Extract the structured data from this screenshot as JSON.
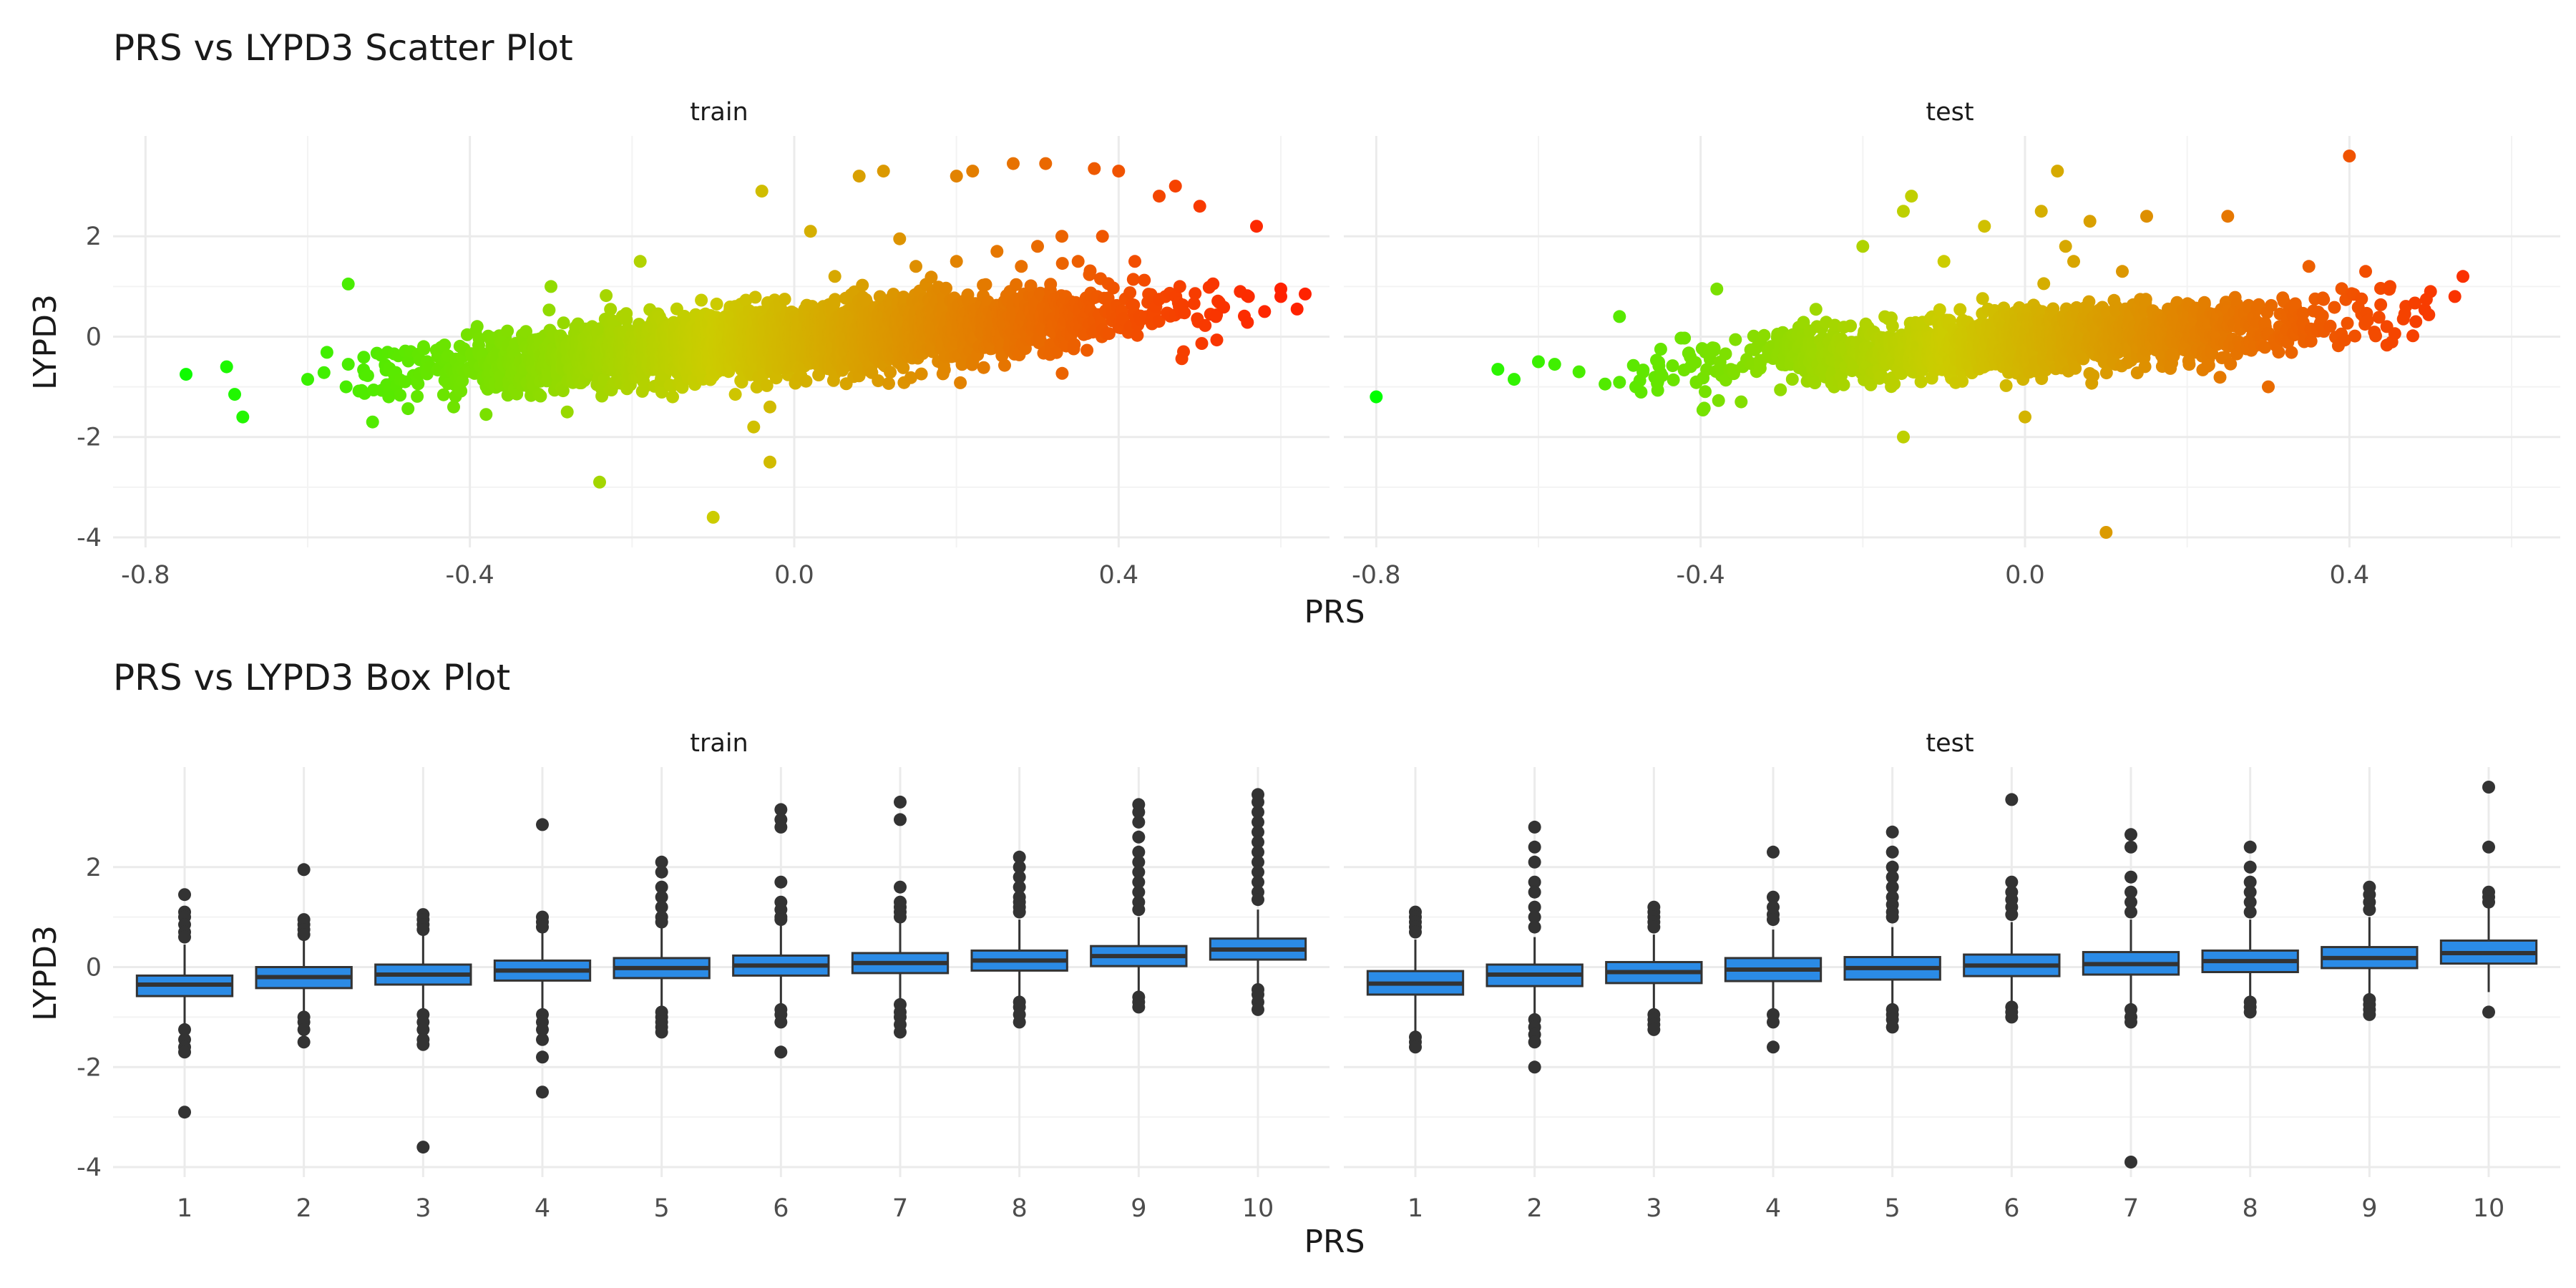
{
  "chart_data": [
    {
      "type": "scatter",
      "title": "PRS vs LYPD3 Scatter Plot",
      "xlabel": "PRS",
      "ylabel": "LYPD3",
      "facets": [
        "train",
        "test"
      ],
      "xlim": [
        -0.84,
        0.66
      ],
      "ylim": [
        -4.2,
        4.0
      ],
      "x_ticks": [
        -0.8,
        -0.4,
        0.0,
        0.4
      ],
      "x_tick_labels": [
        "-0.8",
        "-0.4",
        "0.0",
        "0.4"
      ],
      "y_ticks": [
        -4,
        -2,
        0,
        2
      ],
      "y_tick_labels": [
        "-4",
        "-2",
        "0",
        "2"
      ],
      "color_scale": {
        "low": "#00ff00",
        "mid": "#cccc00",
        "high": "#ff2200",
        "domain": [
          -0.8,
          0.6
        ]
      },
      "grid": true,
      "legend": "none",
      "panels": {
        "train": {
          "cloud": {
            "slope": 1.25,
            "intercept": -0.05,
            "spread": 0.32,
            "x_mean": 0.0,
            "x_sd": 0.2,
            "x_range": [
              -0.58,
              0.56
            ],
            "n": 3500
          },
          "points": [
            [
              -0.75,
              -0.75
            ],
            [
              -0.7,
              -0.6
            ],
            [
              -0.69,
              -1.15
            ],
            [
              -0.68,
              -1.6
            ],
            [
              -0.6,
              -0.85
            ],
            [
              -0.55,
              -0.55
            ],
            [
              -0.55,
              1.05
            ],
            [
              -0.52,
              -1.7
            ],
            [
              -0.5,
              -1.2
            ],
            [
              -0.48,
              -0.9
            ],
            [
              -0.42,
              -1.4
            ],
            [
              -0.38,
              -1.55
            ],
            [
              -0.3,
              1.0
            ],
            [
              -0.28,
              -1.5
            ],
            [
              -0.24,
              -2.9
            ],
            [
              -0.19,
              1.5
            ],
            [
              -0.15,
              -1.2
            ],
            [
              -0.1,
              -3.6
            ],
            [
              -0.05,
              -1.8
            ],
            [
              -0.04,
              2.9
            ],
            [
              -0.03,
              -1.4
            ],
            [
              -0.03,
              -2.5
            ],
            [
              0.02,
              2.1
            ],
            [
              0.05,
              1.2
            ],
            [
              0.08,
              3.2
            ],
            [
              0.11,
              3.3
            ],
            [
              0.13,
              1.95
            ],
            [
              0.15,
              1.4
            ],
            [
              0.2,
              1.5
            ],
            [
              0.2,
              3.2
            ],
            [
              0.22,
              3.3
            ],
            [
              0.25,
              1.7
            ],
            [
              0.27,
              3.45
            ],
            [
              0.28,
              1.4
            ],
            [
              0.3,
              1.8
            ],
            [
              0.31,
              3.45
            ],
            [
              0.33,
              2.0
            ],
            [
              0.35,
              1.5
            ],
            [
              0.37,
              3.35
            ],
            [
              0.38,
              2.0
            ],
            [
              0.4,
              3.3
            ],
            [
              0.42,
              1.5
            ],
            [
              0.45,
              2.8
            ],
            [
              0.47,
              3.0
            ],
            [
              0.48,
              -0.3
            ],
            [
              0.5,
              2.6
            ],
            [
              0.52,
              0.4
            ],
            [
              0.55,
              0.9
            ],
            [
              0.56,
              0.8
            ],
            [
              0.57,
              2.2
            ],
            [
              0.58,
              0.5
            ],
            [
              0.6,
              0.8
            ],
            [
              0.62,
              0.55
            ],
            [
              0.63,
              0.85
            ],
            [
              0.6,
              0.95
            ]
          ]
        },
        "test": {
          "cloud": {
            "slope": 1.1,
            "intercept": -0.1,
            "spread": 0.3,
            "x_mean": 0.0,
            "x_sd": 0.2,
            "x_range": [
              -0.52,
              0.5
            ],
            "n": 1600
          },
          "points": [
            [
              -0.8,
              -1.2
            ],
            [
              -0.65,
              -0.65
            ],
            [
              -0.63,
              -0.85
            ],
            [
              -0.6,
              -0.5
            ],
            [
              -0.58,
              -0.55
            ],
            [
              -0.55,
              -0.7
            ],
            [
              -0.5,
              0.4
            ],
            [
              -0.48,
              -1.0
            ],
            [
              -0.38,
              0.95
            ],
            [
              -0.35,
              -1.3
            ],
            [
              -0.2,
              1.8
            ],
            [
              -0.15,
              -2.0
            ],
            [
              -0.15,
              2.5
            ],
            [
              -0.14,
              2.8
            ],
            [
              -0.1,
              1.5
            ],
            [
              -0.05,
              2.2
            ],
            [
              0.0,
              -1.6
            ],
            [
              0.02,
              2.5
            ],
            [
              0.04,
              3.3
            ],
            [
              0.05,
              1.8
            ],
            [
              0.06,
              1.5
            ],
            [
              0.08,
              2.3
            ],
            [
              0.1,
              -3.9
            ],
            [
              0.12,
              1.3
            ],
            [
              0.15,
              2.4
            ],
            [
              0.25,
              2.4
            ],
            [
              0.3,
              -1.0
            ],
            [
              0.35,
              1.4
            ],
            [
              0.4,
              3.6
            ],
            [
              0.42,
              1.3
            ],
            [
              0.45,
              1.0
            ],
            [
              0.5,
              0.9
            ],
            [
              0.53,
              0.8
            ],
            [
              0.54,
              1.2
            ]
          ]
        }
      }
    },
    {
      "type": "box",
      "title": "PRS vs LYPD3 Box Plot",
      "xlabel": "PRS",
      "ylabel": "LYPD3",
      "facets": [
        "train",
        "test"
      ],
      "categories": [
        "1",
        "2",
        "3",
        "4",
        "5",
        "6",
        "7",
        "8",
        "9",
        "10"
      ],
      "ylim": [
        -4.2,
        4.0
      ],
      "y_ticks": [
        -4,
        -2,
        0,
        2
      ],
      "y_tick_labels": [
        "-4",
        "-2",
        "0",
        "2"
      ],
      "box_fill": "#2b8be6",
      "grid": true,
      "legend": "none",
      "panels": {
        "train": [
          {
            "cat": "1",
            "q1": -0.58,
            "median": -0.35,
            "q3": -0.17,
            "lo": -1.15,
            "hi": 0.45,
            "outliers": [
              1.45,
              1.1,
              1.0,
              0.85,
              0.7,
              0.6,
              -1.25,
              -1.45,
              -1.6,
              -1.7,
              -2.9
            ]
          },
          {
            "cat": "2",
            "q1": -0.42,
            "median": -0.2,
            "q3": 0.0,
            "lo": -0.95,
            "hi": 0.6,
            "outliers": [
              1.95,
              0.95,
              0.85,
              0.75,
              0.65,
              -1.0,
              -1.1,
              -1.25,
              -1.5
            ]
          },
          {
            "cat": "3",
            "q1": -0.35,
            "median": -0.15,
            "q3": 0.05,
            "lo": -0.9,
            "hi": 0.65,
            "outliers": [
              1.05,
              0.95,
              0.85,
              0.75,
              -0.95,
              -1.1,
              -1.25,
              -1.45,
              -1.55,
              -3.6
            ]
          },
          {
            "cat": "4",
            "q1": -0.27,
            "median": -0.07,
            "q3": 0.13,
            "lo": -0.85,
            "hi": 0.7,
            "outliers": [
              2.85,
              1.0,
              0.9,
              0.8,
              -0.95,
              -1.1,
              -1.25,
              -1.45,
              -1.8,
              -2.5
            ]
          },
          {
            "cat": "5",
            "q1": -0.22,
            "median": -0.02,
            "q3": 0.18,
            "lo": -0.8,
            "hi": 0.8,
            "outliers": [
              2.1,
              1.9,
              1.6,
              1.4,
              1.2,
              1.0,
              0.9,
              -0.9,
              -1.0,
              -1.1,
              -1.2,
              -1.3
            ]
          },
          {
            "cat": "6",
            "q1": -0.17,
            "median": 0.03,
            "q3": 0.23,
            "lo": -0.75,
            "hi": 0.85,
            "outliers": [
              3.15,
              2.95,
              2.8,
              1.7,
              1.3,
              1.15,
              1.0,
              0.95,
              -0.85,
              -0.95,
              -1.1,
              -1.7
            ]
          },
          {
            "cat": "7",
            "q1": -0.12,
            "median": 0.08,
            "q3": 0.28,
            "lo": -0.7,
            "hi": 0.9,
            "outliers": [
              3.3,
              2.95,
              1.6,
              1.3,
              1.2,
              1.1,
              1.0,
              -0.75,
              -0.9,
              -1.0,
              -1.15,
              -1.3
            ]
          },
          {
            "cat": "8",
            "q1": -0.07,
            "median": 0.13,
            "q3": 0.33,
            "lo": -0.65,
            "hi": 0.95,
            "outliers": [
              2.2,
              2.0,
              1.8,
              1.6,
              1.4,
              1.3,
              1.2,
              1.1,
              -0.7,
              -0.8,
              -0.95,
              -1.1
            ]
          },
          {
            "cat": "9",
            "q1": 0.02,
            "median": 0.22,
            "q3": 0.42,
            "lo": -0.55,
            "hi": 1.0,
            "outliers": [
              3.25,
              3.1,
              2.9,
              2.6,
              2.3,
              2.1,
              1.9,
              1.7,
              1.5,
              1.3,
              1.15,
              -0.6,
              -0.7,
              -0.8
            ]
          },
          {
            "cat": "10",
            "q1": 0.15,
            "median": 0.35,
            "q3": 0.57,
            "lo": -0.35,
            "hi": 1.15,
            "outliers": [
              3.45,
              3.3,
              3.1,
              2.9,
              2.7,
              2.5,
              2.3,
              2.1,
              1.9,
              1.7,
              1.5,
              1.35,
              -0.45,
              -0.55,
              -0.7,
              -0.85
            ]
          }
        ],
        "test": [
          {
            "cat": "1",
            "q1": -0.55,
            "median": -0.33,
            "q3": -0.08,
            "lo": -1.3,
            "hi": 0.55,
            "outliers": [
              1.1,
              1.0,
              0.9,
              0.8,
              0.7,
              -1.4,
              -1.5,
              -1.6
            ]
          },
          {
            "cat": "2",
            "q1": -0.38,
            "median": -0.15,
            "q3": 0.05,
            "lo": -1.0,
            "hi": 0.6,
            "outliers": [
              2.8,
              2.4,
              2.1,
              1.7,
              1.5,
              1.2,
              1.0,
              0.8,
              -1.05,
              -1.2,
              -1.35,
              -1.5,
              -2.0
            ]
          },
          {
            "cat": "3",
            "q1": -0.32,
            "median": -0.1,
            "q3": 0.1,
            "lo": -0.9,
            "hi": 0.65,
            "outliers": [
              1.2,
              1.1,
              1.0,
              0.9,
              0.8,
              -0.95,
              -1.05,
              -1.15,
              -1.25
            ]
          },
          {
            "cat": "4",
            "q1": -0.28,
            "median": -0.05,
            "q3": 0.18,
            "lo": -0.85,
            "hi": 0.75,
            "outliers": [
              2.3,
              1.4,
              1.2,
              1.05,
              0.95,
              -0.95,
              -1.1,
              -1.6
            ]
          },
          {
            "cat": "5",
            "q1": -0.25,
            "median": -0.02,
            "q3": 0.2,
            "lo": -0.8,
            "hi": 0.8,
            "outliers": [
              2.7,
              2.3,
              2.0,
              1.8,
              1.6,
              1.4,
              1.25,
              1.1,
              1.0,
              -0.85,
              -0.95,
              -1.05,
              -1.2
            ]
          },
          {
            "cat": "6",
            "q1": -0.18,
            "median": 0.03,
            "q3": 0.25,
            "lo": -0.75,
            "hi": 0.9,
            "outliers": [
              3.35,
              1.7,
              1.5,
              1.35,
              1.2,
              1.05,
              -0.8,
              -0.9,
              -1.0
            ]
          },
          {
            "cat": "7",
            "q1": -0.15,
            "median": 0.06,
            "q3": 0.3,
            "lo": -0.75,
            "hi": 0.95,
            "outliers": [
              2.65,
              2.4,
              1.8,
              1.5,
              1.3,
              1.1,
              -0.85,
              -1.0,
              -1.1,
              -3.9
            ]
          },
          {
            "cat": "8",
            "q1": -0.1,
            "median": 0.12,
            "q3": 0.33,
            "lo": -0.7,
            "hi": 0.95,
            "outliers": [
              2.4,
              2.0,
              1.7,
              1.5,
              1.3,
              1.1,
              -0.7,
              -0.8,
              -0.9
            ]
          },
          {
            "cat": "9",
            "q1": -0.02,
            "median": 0.18,
            "q3": 0.4,
            "lo": -0.6,
            "hi": 1.0,
            "outliers": [
              1.6,
              1.45,
              1.3,
              1.15,
              -0.65,
              -0.75,
              -0.85,
              -0.95
            ]
          },
          {
            "cat": "10",
            "q1": 0.07,
            "median": 0.28,
            "q3": 0.53,
            "lo": -0.5,
            "hi": 1.2,
            "outliers": [
              3.6,
              2.4,
              1.5,
              1.4,
              1.3,
              -0.9
            ]
          }
        ]
      }
    }
  ]
}
